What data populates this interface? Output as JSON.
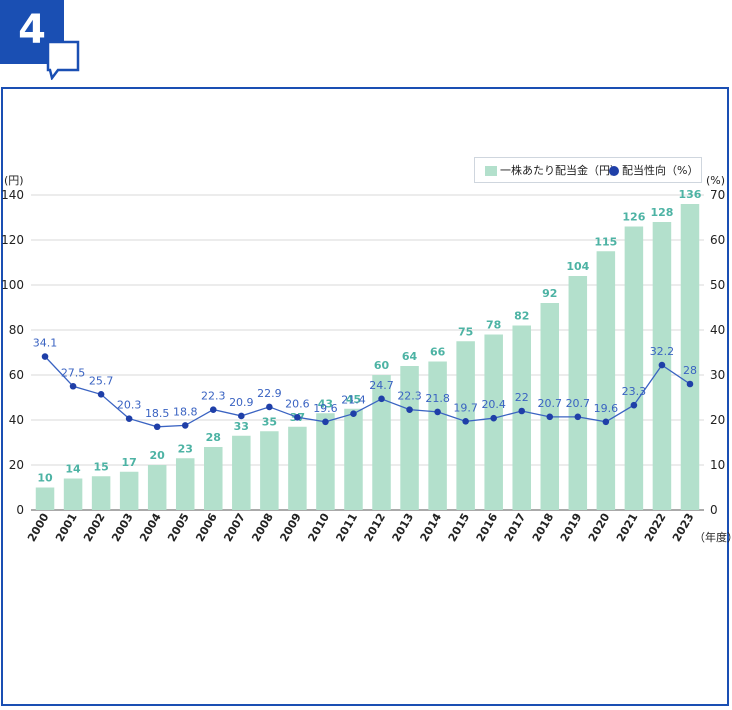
{
  "badge": {
    "number": "4",
    "color": "#1a4fb3"
  },
  "chart_data": {
    "type": "bar",
    "categories": [
      "2000",
      "2001",
      "2002",
      "2003",
      "2004",
      "2005",
      "2006",
      "2007",
      "2008",
      "2009",
      "2010",
      "2011",
      "2012",
      "2013",
      "2014",
      "2015",
      "2016",
      "2017",
      "2018",
      "2019",
      "2020",
      "2021",
      "2022",
      "2023"
    ],
    "series": [
      {
        "name": "一株あたり配当金（円）",
        "type": "bar",
        "axis": "left",
        "values": [
          10,
          14,
          15,
          17,
          20,
          23,
          28,
          33,
          35,
          37,
          43,
          45,
          60,
          64,
          66,
          75,
          78,
          82,
          92,
          104,
          115,
          126,
          128,
          136
        ]
      },
      {
        "name": "配当性向（%）",
        "type": "line",
        "axis": "right",
        "values": [
          34.1,
          27.5,
          25.7,
          20.3,
          18.5,
          18.8,
          22.3,
          20.9,
          22.9,
          20.6,
          19.6,
          21.4,
          24.7,
          22.3,
          21.8,
          19.7,
          20.4,
          22,
          20.7,
          20.7,
          19.6,
          23.3,
          32.2,
          28
        ]
      }
    ],
    "y_left": {
      "label": "(円)",
      "ylim": [
        0,
        140
      ],
      "ticks": [
        0,
        20,
        40,
        60,
        80,
        100,
        120,
        140
      ]
    },
    "y_right": {
      "label": "(%)",
      "ylim": [
        0,
        70
      ],
      "ticks": [
        0,
        10,
        20,
        30,
        40,
        50,
        60,
        70
      ]
    },
    "xlabel": "（年度）",
    "legend_position": "top-right",
    "grid": true,
    "colors": {
      "bar": "#b3e0cc",
      "bar_label": "#4db3a4",
      "line": "#1f3fa8",
      "line_label": "#3a63c2",
      "grid": "#d9d9d9",
      "axis": "#555555"
    }
  }
}
